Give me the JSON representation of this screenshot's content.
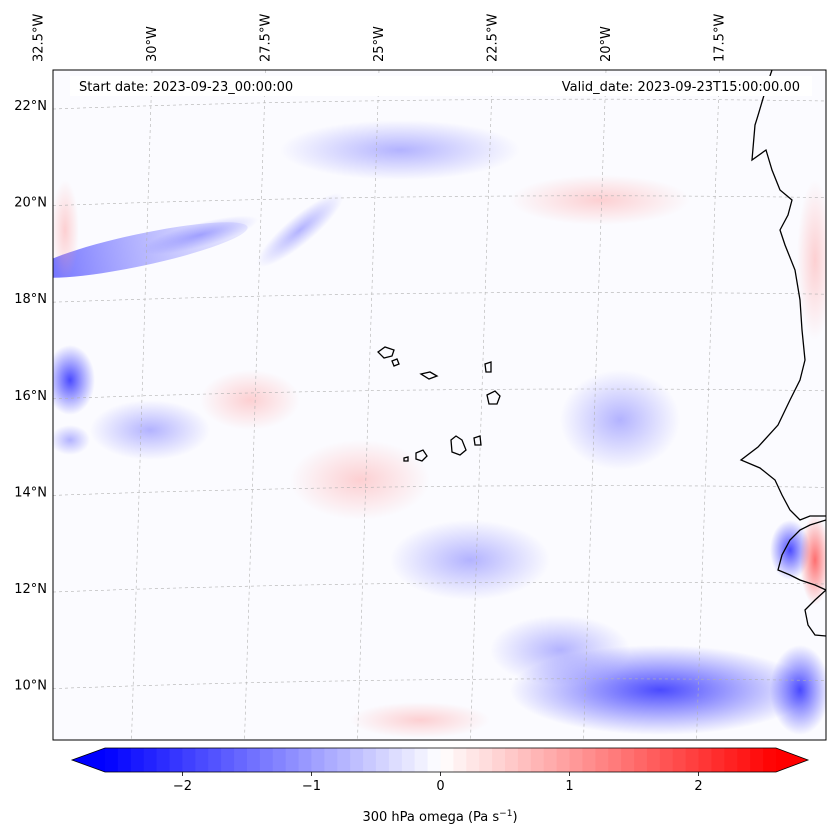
{
  "header": {
    "start_date": "Start date: 2023-09-23_00:00:00",
    "valid_date": "Valid_date: 2023-09-23T15:00:00.00"
  },
  "map": {
    "lon_ticks": [
      {
        "value": -32.5,
        "label": "32.5°W"
      },
      {
        "value": -30.0,
        "label": "30°W"
      },
      {
        "value": -27.5,
        "label": "27.5°W"
      },
      {
        "value": -25.0,
        "label": "25°W"
      },
      {
        "value": -22.5,
        "label": "22.5°W"
      },
      {
        "value": -20.0,
        "label": "20°W"
      },
      {
        "value": -17.5,
        "label": "17.5°W"
      }
    ],
    "lat_ticks": [
      {
        "value": 22,
        "label": "22°N"
      },
      {
        "value": 20,
        "label": "20°N"
      },
      {
        "value": 18,
        "label": "18°N"
      },
      {
        "value": 16,
        "label": "16°N"
      },
      {
        "value": 14,
        "label": "14°N"
      },
      {
        "value": 12,
        "label": "12°N"
      },
      {
        "value": 10,
        "label": "10°N"
      }
    ],
    "colors": {
      "negative": "#0000ff",
      "zero": "#ffffff",
      "positive": "#ff0000",
      "coast": "#000000",
      "grid": "#b0b0b0"
    }
  },
  "colorbar": {
    "label_prefix": "300 hPa omega (Pa s",
    "label_exp": "−1",
    "label_suffix": ")",
    "vmin": -2.6,
    "vmax": 2.6,
    "ticks": [
      {
        "value": -2,
        "label": "−2"
      },
      {
        "value": -1,
        "label": "−1"
      },
      {
        "value": 0,
        "label": "0"
      },
      {
        "value": 1,
        "label": "1"
      },
      {
        "value": 2,
        "label": "2"
      }
    ]
  }
}
